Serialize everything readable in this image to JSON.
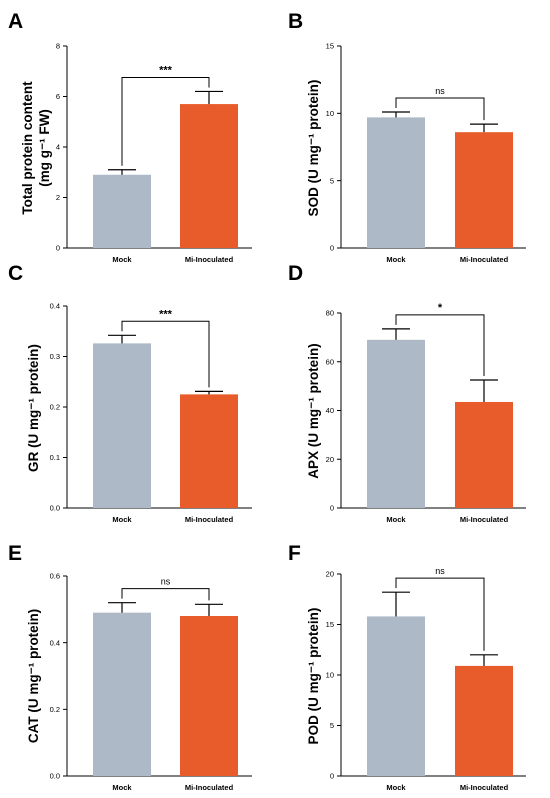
{
  "colors": {
    "mock": "#aeb9c8",
    "inoculated": "#e85c2b"
  },
  "chart_data": [
    {
      "type": "bar",
      "panel": "A",
      "ylabel": "Total protein content\n(mg g⁻¹ FW)",
      "categories": [
        "Mock",
        "Mi-Inoculated"
      ],
      "values": [
        2.9,
        5.7
      ],
      "errors": [
        0.2,
        0.5
      ],
      "ylim": [
        0,
        8
      ],
      "yticks": [
        0,
        2,
        4,
        6,
        8
      ],
      "ytick_labels": [
        "0",
        "2",
        "4",
        "6",
        "8"
      ],
      "significance": "***"
    },
    {
      "type": "bar",
      "panel": "B",
      "ylabel": "SOD (U mg⁻¹ protein)",
      "categories": [
        "Mock",
        "Mi-Inoculated"
      ],
      "values": [
        9.7,
        8.6
      ],
      "errors": [
        0.4,
        0.6
      ],
      "ylim": [
        0,
        15
      ],
      "yticks": [
        0,
        5,
        10,
        15
      ],
      "ytick_labels": [
        "0",
        "5",
        "10",
        "15"
      ],
      "significance": "ns"
    },
    {
      "type": "bar",
      "panel": "C",
      "ylabel": "GR (U mg⁻¹ protein)",
      "categories": [
        "Mock",
        "Mi-Inoculated"
      ],
      "values": [
        0.326,
        0.225
      ],
      "errors": [
        0.016,
        0.006
      ],
      "ylim": [
        0,
        0.4
      ],
      "yticks": [
        0,
        0.1,
        0.2,
        0.3,
        0.4
      ],
      "ytick_labels": [
        "0.0",
        "0.1",
        "0.2",
        "0.3",
        "0.4"
      ],
      "significance": "***"
    },
    {
      "type": "bar",
      "panel": "D",
      "ylabel": "APX (U mg⁻¹ protein)",
      "categories": [
        "Mock",
        "Mi-Inoculated"
      ],
      "values": [
        69,
        43.5
      ],
      "errors": [
        4.5,
        9
      ],
      "ylim": [
        0,
        80
      ],
      "yticks": [
        0,
        20,
        40,
        60,
        80
      ],
      "ytick_labels": [
        "0",
        "20",
        "40",
        "60",
        "80"
      ],
      "significance": "*"
    },
    {
      "type": "bar",
      "panel": "E",
      "ylabel": "CAT (U mg⁻¹ protein)",
      "categories": [
        "Mock",
        "Mi-Inoculated"
      ],
      "values": [
        0.49,
        0.48
      ],
      "errors": [
        0.03,
        0.035
      ],
      "ylim": [
        0,
        0.6
      ],
      "yticks": [
        0,
        0.2,
        0.4,
        0.6
      ],
      "ytick_labels": [
        "0.0",
        "0.2",
        "0.4",
        "0.6"
      ],
      "significance": "ns"
    },
    {
      "type": "bar",
      "panel": "F",
      "ylabel": "POD (U mg⁻¹ protein)",
      "categories": [
        "Mock",
        "Mi-Inoculated"
      ],
      "values": [
        15.8,
        10.9
      ],
      "errors": [
        2.4,
        1.1
      ],
      "ylim": [
        0,
        20
      ],
      "yticks": [
        0,
        5,
        10,
        15,
        20
      ],
      "ytick_labels": [
        "0",
        "5",
        "10",
        "15",
        "20"
      ],
      "significance": "ns"
    }
  ]
}
